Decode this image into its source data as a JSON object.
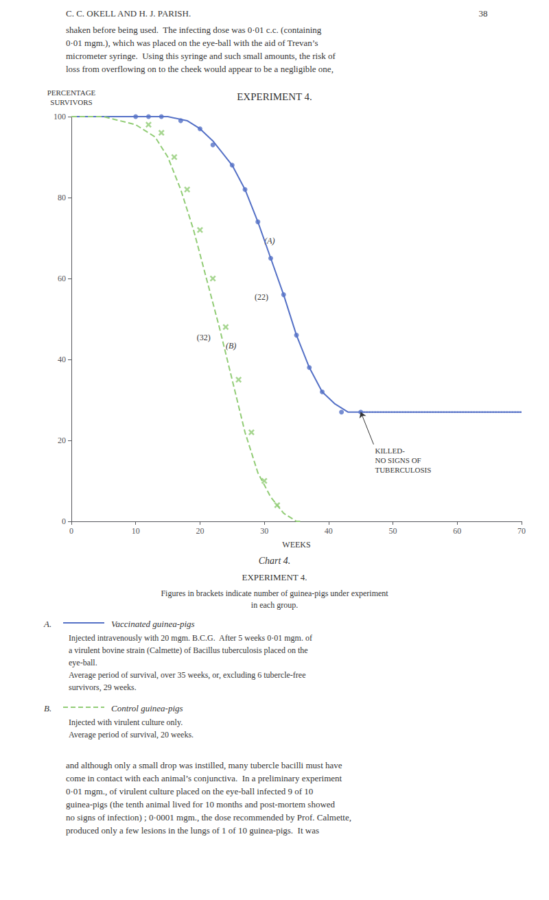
{
  "chart_data": {
    "type": "line",
    "title": "EXPERIMENT 4.",
    "xlabel": "WEEKS",
    "ylabel": [
      "PERCENTAGE",
      "SURVIVORS"
    ],
    "xlim": [
      0,
      70
    ],
    "ylim": [
      0,
      100
    ],
    "xticks": [
      0,
      10,
      20,
      30,
      40,
      50,
      60,
      70
    ],
    "yticks": [
      0,
      20,
      40,
      60,
      80,
      100
    ],
    "grid": false,
    "legend": "bottom",
    "series": [
      {
        "name": "Vaccinated guinea-pigs",
        "key": "A.",
        "type": "line",
        "line_style": "solid",
        "color": "#5470c6",
        "x": [
          0,
          5,
          10,
          12,
          15,
          18,
          20,
          22,
          25,
          27,
          29,
          31,
          33,
          35,
          37,
          39,
          41,
          43,
          45,
          50,
          55,
          60,
          65,
          70
        ],
        "values": [
          100,
          100,
          100,
          100,
          100,
          99,
          97,
          94,
          88,
          82,
          74,
          65,
          56,
          46,
          38,
          32,
          29,
          27,
          27,
          27,
          27,
          27,
          27,
          27
        ],
        "description": [
          "Injected intravenously with 20 mgm. B.C.G.  After 5 weeks 0·01 mgm. of",
          "a virulent bovine strain (Calmette) of Bacillus tuberculosis placed on the",
          "eye-ball.",
          "Average period of survival, over 35 weeks, or, excluding 6 tubercle-free",
          "survivors, 29 weeks."
        ]
      },
      {
        "name": "Control guinea-pigs",
        "key": "B.",
        "type": "line",
        "line_style": "dashed",
        "color": "#91cc75",
        "x": [
          0,
          5,
          10,
          13,
          15,
          17,
          19,
          21,
          23,
          25,
          27,
          29,
          31,
          33,
          35,
          36
        ],
        "values": [
          100,
          100,
          98,
          95,
          90,
          82,
          72,
          60,
          48,
          35,
          22,
          12,
          6,
          2,
          0,
          0
        ],
        "description": [
          "Injected with virulent culture only.",
          "Average period of survival, 20 weeks."
        ]
      },
      {
        "type": "scatter",
        "marker": "dot",
        "color": "#5470c6",
        "x": [
          10,
          12,
          14,
          17,
          20,
          22,
          25,
          27,
          29,
          31,
          33,
          35,
          37,
          39,
          42,
          45
        ],
        "values": [
          100,
          100,
          100,
          99,
          97,
          93,
          88,
          82,
          74,
          65,
          56,
          46,
          38,
          32,
          27,
          27
        ]
      },
      {
        "type": "scatter",
        "marker": "x",
        "color": "#91cc75",
        "x": [
          12,
          14,
          16,
          18,
          20,
          22,
          24,
          26,
          28,
          30,
          32
        ],
        "values": [
          98,
          96,
          90,
          82,
          72,
          60,
          48,
          35,
          22,
          10,
          4
        ]
      },
      {
        "type": "line",
        "line_style": "dotted",
        "color": "#5470c6",
        "x": [
          45,
          70
        ],
        "values": [
          27,
          27
        ]
      }
    ],
    "annotations": [
      {
        "text": "(A)",
        "x": 30,
        "y": 68
      },
      {
        "text": "(B)",
        "x": 24,
        "y": 42
      },
      {
        "text": "(32)",
        "x": 19.5,
        "y": 44
      },
      {
        "text": "(22)",
        "x": 28.5,
        "y": 54
      },
      {
        "text": "KILLED-\nNO SIGNS OF\nTUBERCULOSIS",
        "x": 47,
        "y": 19,
        "arrow_x": 45,
        "arrow_y": 27
      }
    ],
    "header_left": "C. C. OKELL AND H. J. PARISH.",
    "header_right": "38",
    "top_text": "shaken before being used.  The infecting dose was 0·01 c.c. (containing\n0·01 mgm.), which was placed on the eye-ball with the aid of Trevan’s\nmicrometer syringe.  Using this syringe and such small amounts, the risk of\nloss from overflowing on to the cheek would appear to be a negligible one,",
    "caption": "Chart 4.",
    "subtitle": "EXPERIMENT 4.",
    "note": [
      "Figures in brackets indicate number of guinea-pigs under experiment",
      "in each group."
    ],
    "bottom_text": "and although only a small drop was instilled, many tubercle bacilli must have\ncome in contact with each animal’s conjunctiva.  In a preliminary experiment\n0·01 mgm., of virulent culture placed on the eye-ball infected 9 of 10\nguinea-pigs (the tenth animal lived for 10 months and post-mortem showed\nno signs of infection) ; 0·0001 mgm., the dose recommended by Prof. Calmette,\nproduced only a few lesions in the lungs of 1 of 10 guinea-pigs.  It was"
  }
}
